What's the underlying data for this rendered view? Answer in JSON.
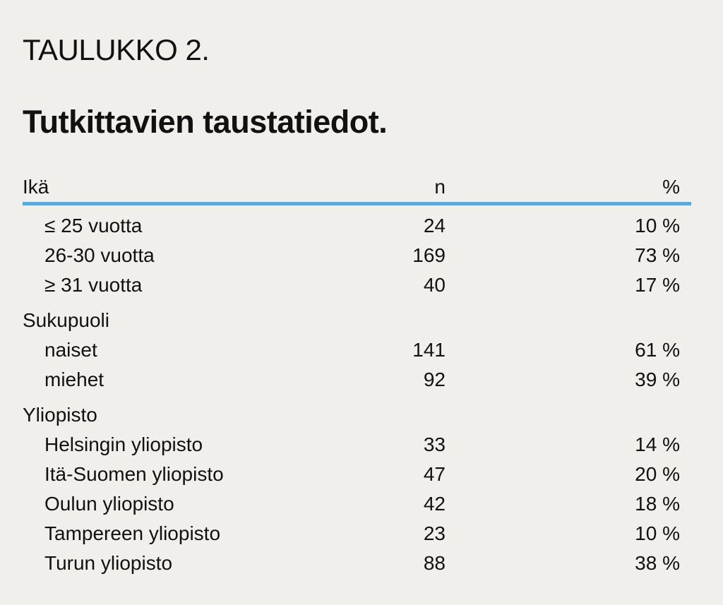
{
  "table": {
    "kicker": "TAULUKKO 2.",
    "title": "Tutkittavien taustatiedot.",
    "columns": {
      "label": "Ikä",
      "n": "n",
      "pct": "%"
    },
    "age_rows": [
      {
        "label": "≤ 25 vuotta",
        "n": "24",
        "pct": "10 %"
      },
      {
        "label": "26-30 vuotta",
        "n": "169",
        "pct": "73 %"
      },
      {
        "label": "≥ 31 vuotta",
        "n": "40",
        "pct": "17 %"
      }
    ],
    "gender_heading": "Sukupuoli",
    "gender_rows": [
      {
        "label": "naiset",
        "n": "141",
        "pct": "61 %"
      },
      {
        "label": "miehet",
        "n": "92",
        "pct": "39 %"
      }
    ],
    "university_heading": "Yliopisto",
    "university_rows": [
      {
        "label": "Helsingin yliopisto",
        "n": "33",
        "pct": "14 %"
      },
      {
        "label": "Itä-Suomen yliopisto",
        "n": "47",
        "pct": "20 %"
      },
      {
        "label": "Oulun yliopisto",
        "n": "42",
        "pct": "18 %"
      },
      {
        "label": "Tampereen yliopisto",
        "n": "23",
        "pct": "10 %"
      },
      {
        "label": "Turun yliopisto",
        "n": "88",
        "pct": "38 %"
      }
    ],
    "accent_color": "#5ea8dc"
  }
}
